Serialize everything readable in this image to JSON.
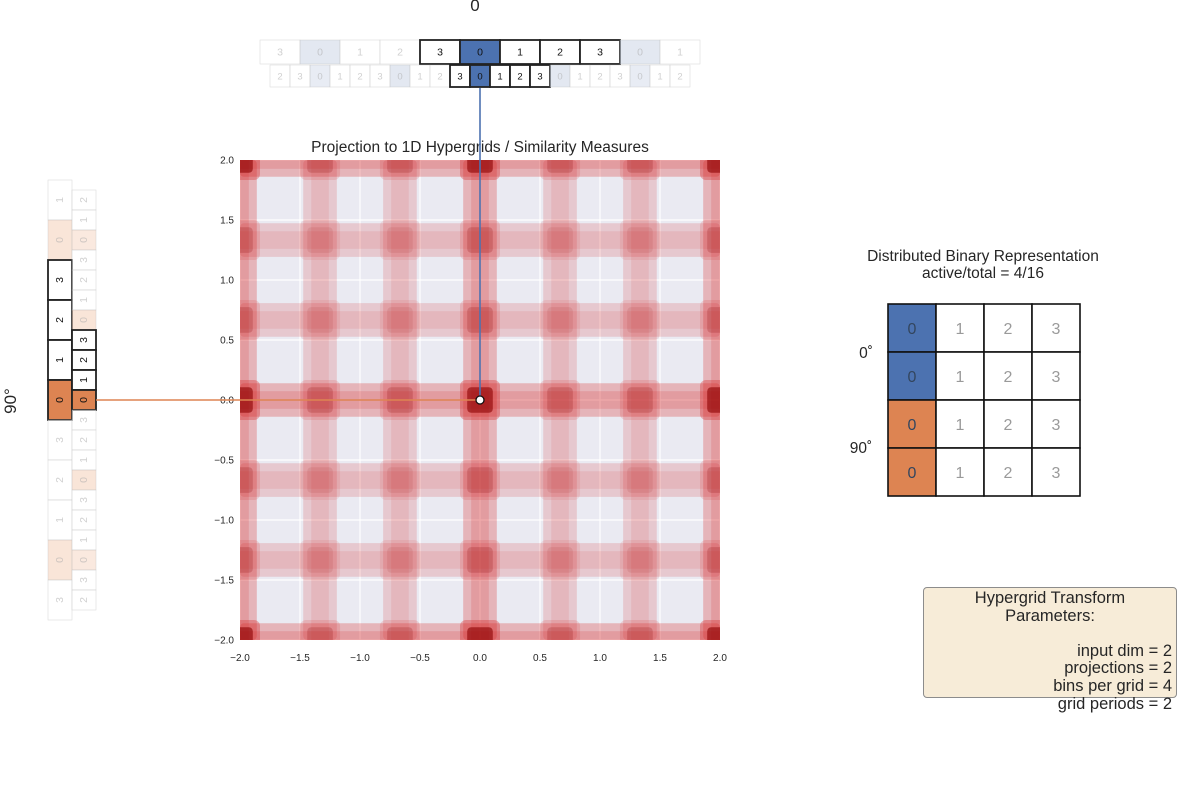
{
  "top_label": "0",
  "left_label": "90°",
  "main_plot": {
    "title": "Projection to 1D Hypergrids / Similarity Measures",
    "x_ticks": [
      "−2.0",
      "−1.5",
      "−1.0",
      "−0.5",
      "0.0",
      "0.5",
      "1.0",
      "1.5",
      "2.0"
    ],
    "y_ticks": [
      "2.0",
      "1.5",
      "1.0",
      "0.5",
      "0.0",
      "−0.5",
      "−1.0",
      "−1.5",
      "−2.0"
    ],
    "xlim": [
      -2,
      2
    ],
    "ylim": [
      -2,
      2
    ],
    "grid": true,
    "point": [
      0,
      0
    ],
    "colors": {
      "background": "#eaeaf2",
      "heat": "#d62728",
      "point": "#ffffff",
      "blue": "#4c72b0",
      "orange": "#dd8452"
    }
  },
  "top_strips": [
    {
      "cells": [
        "3",
        "0",
        "1",
        "2",
        "3",
        "0",
        "1",
        "2",
        "3",
        "0",
        "1"
      ],
      "active_index": 5,
      "highlighted": [
        4,
        5,
        6,
        7,
        8
      ]
    },
    {
      "cells": [
        "2",
        "3",
        "0",
        "1",
        "2",
        "3",
        "0",
        "1",
        "2",
        "3",
        "0",
        "1",
        "2",
        "3",
        "0",
        "1",
        "2",
        "3",
        "0",
        "1",
        "2"
      ],
      "active_index": 10,
      "highlighted": [
        9,
        10,
        11,
        12,
        13
      ]
    }
  ],
  "left_strips": [
    {
      "cells": [
        "1",
        "0",
        "3",
        "2",
        "1",
        "0",
        "3",
        "2",
        "1",
        "0",
        "3"
      ],
      "active_index": 5,
      "highlighted": [
        2,
        3,
        4,
        5
      ]
    },
    {
      "cells": [
        "2",
        "1",
        "0",
        "3",
        "2",
        "1",
        "0",
        "3",
        "2",
        "1",
        "0",
        "3",
        "2",
        "1",
        "0",
        "3",
        "2",
        "1",
        "0",
        "3",
        "2"
      ],
      "active_index": 10,
      "highlighted": [
        7,
        8,
        9,
        10
      ]
    }
  ],
  "binary": {
    "title": "Distributed Binary Representation",
    "subtitle": "active/total = 4/16",
    "row_labels": [
      "0˚",
      "90˚"
    ],
    "rows": [
      {
        "cells": [
          "0",
          "1",
          "2",
          "3"
        ],
        "active": 0,
        "color": "#4c72b0"
      },
      {
        "cells": [
          "0",
          "1",
          "2",
          "3"
        ],
        "active": 0,
        "color": "#4c72b0"
      },
      {
        "cells": [
          "0",
          "1",
          "2",
          "3"
        ],
        "active": 0,
        "color": "#dd8452"
      },
      {
        "cells": [
          "0",
          "1",
          "2",
          "3"
        ],
        "active": 0,
        "color": "#dd8452"
      }
    ]
  },
  "params": {
    "title": "Hypergrid Transform Parameters:",
    "lines": [
      "input dim = 2",
      "projections = 2",
      "bins per grid = 4",
      "grid periods = 2"
    ]
  }
}
